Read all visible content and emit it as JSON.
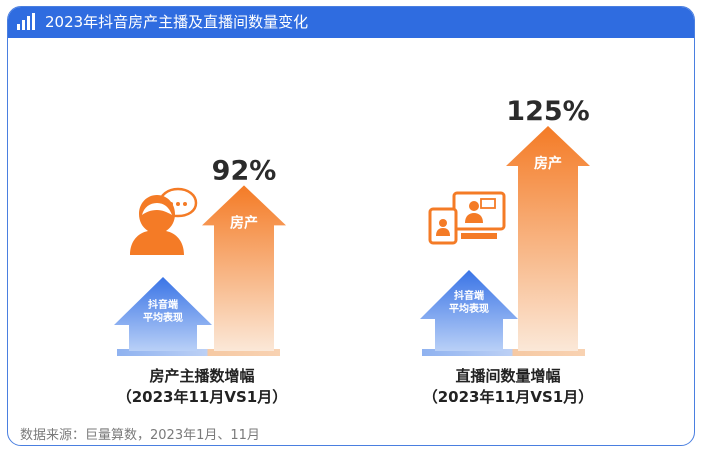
{
  "header": {
    "title": "2023年抖音房产主播及直播间数量变化"
  },
  "footer": {
    "source": "数据来源：巨量算数，2023年1月、11月"
  },
  "colors": {
    "brand": "#2f6ce0",
    "orange": "#f47b26",
    "blue": "#4a7fe0"
  },
  "icons": {
    "left": "woman-chat-icon",
    "right": "screens-icon",
    "header": "chart-icon"
  },
  "chart_data": [
    {
      "type": "bar",
      "categories": [
        "抖音端平均表现",
        "房产"
      ],
      "category_labels": [
        "抖音端\n平均表现",
        "房产"
      ],
      "values_label": [
        "",
        "92%"
      ],
      "value": 92,
      "xlabel": "房产主播数增幅",
      "period": "（2023年11月VS1月）"
    },
    {
      "type": "bar",
      "categories": [
        "抖音端平均表现",
        "房产"
      ],
      "category_labels": [
        "抖音端\n平均表现",
        "房产"
      ],
      "values_label": [
        "",
        "125%"
      ],
      "value": 125,
      "xlabel": "直播间数量增幅",
      "period": "（2023年11月VS1月）"
    }
  ]
}
